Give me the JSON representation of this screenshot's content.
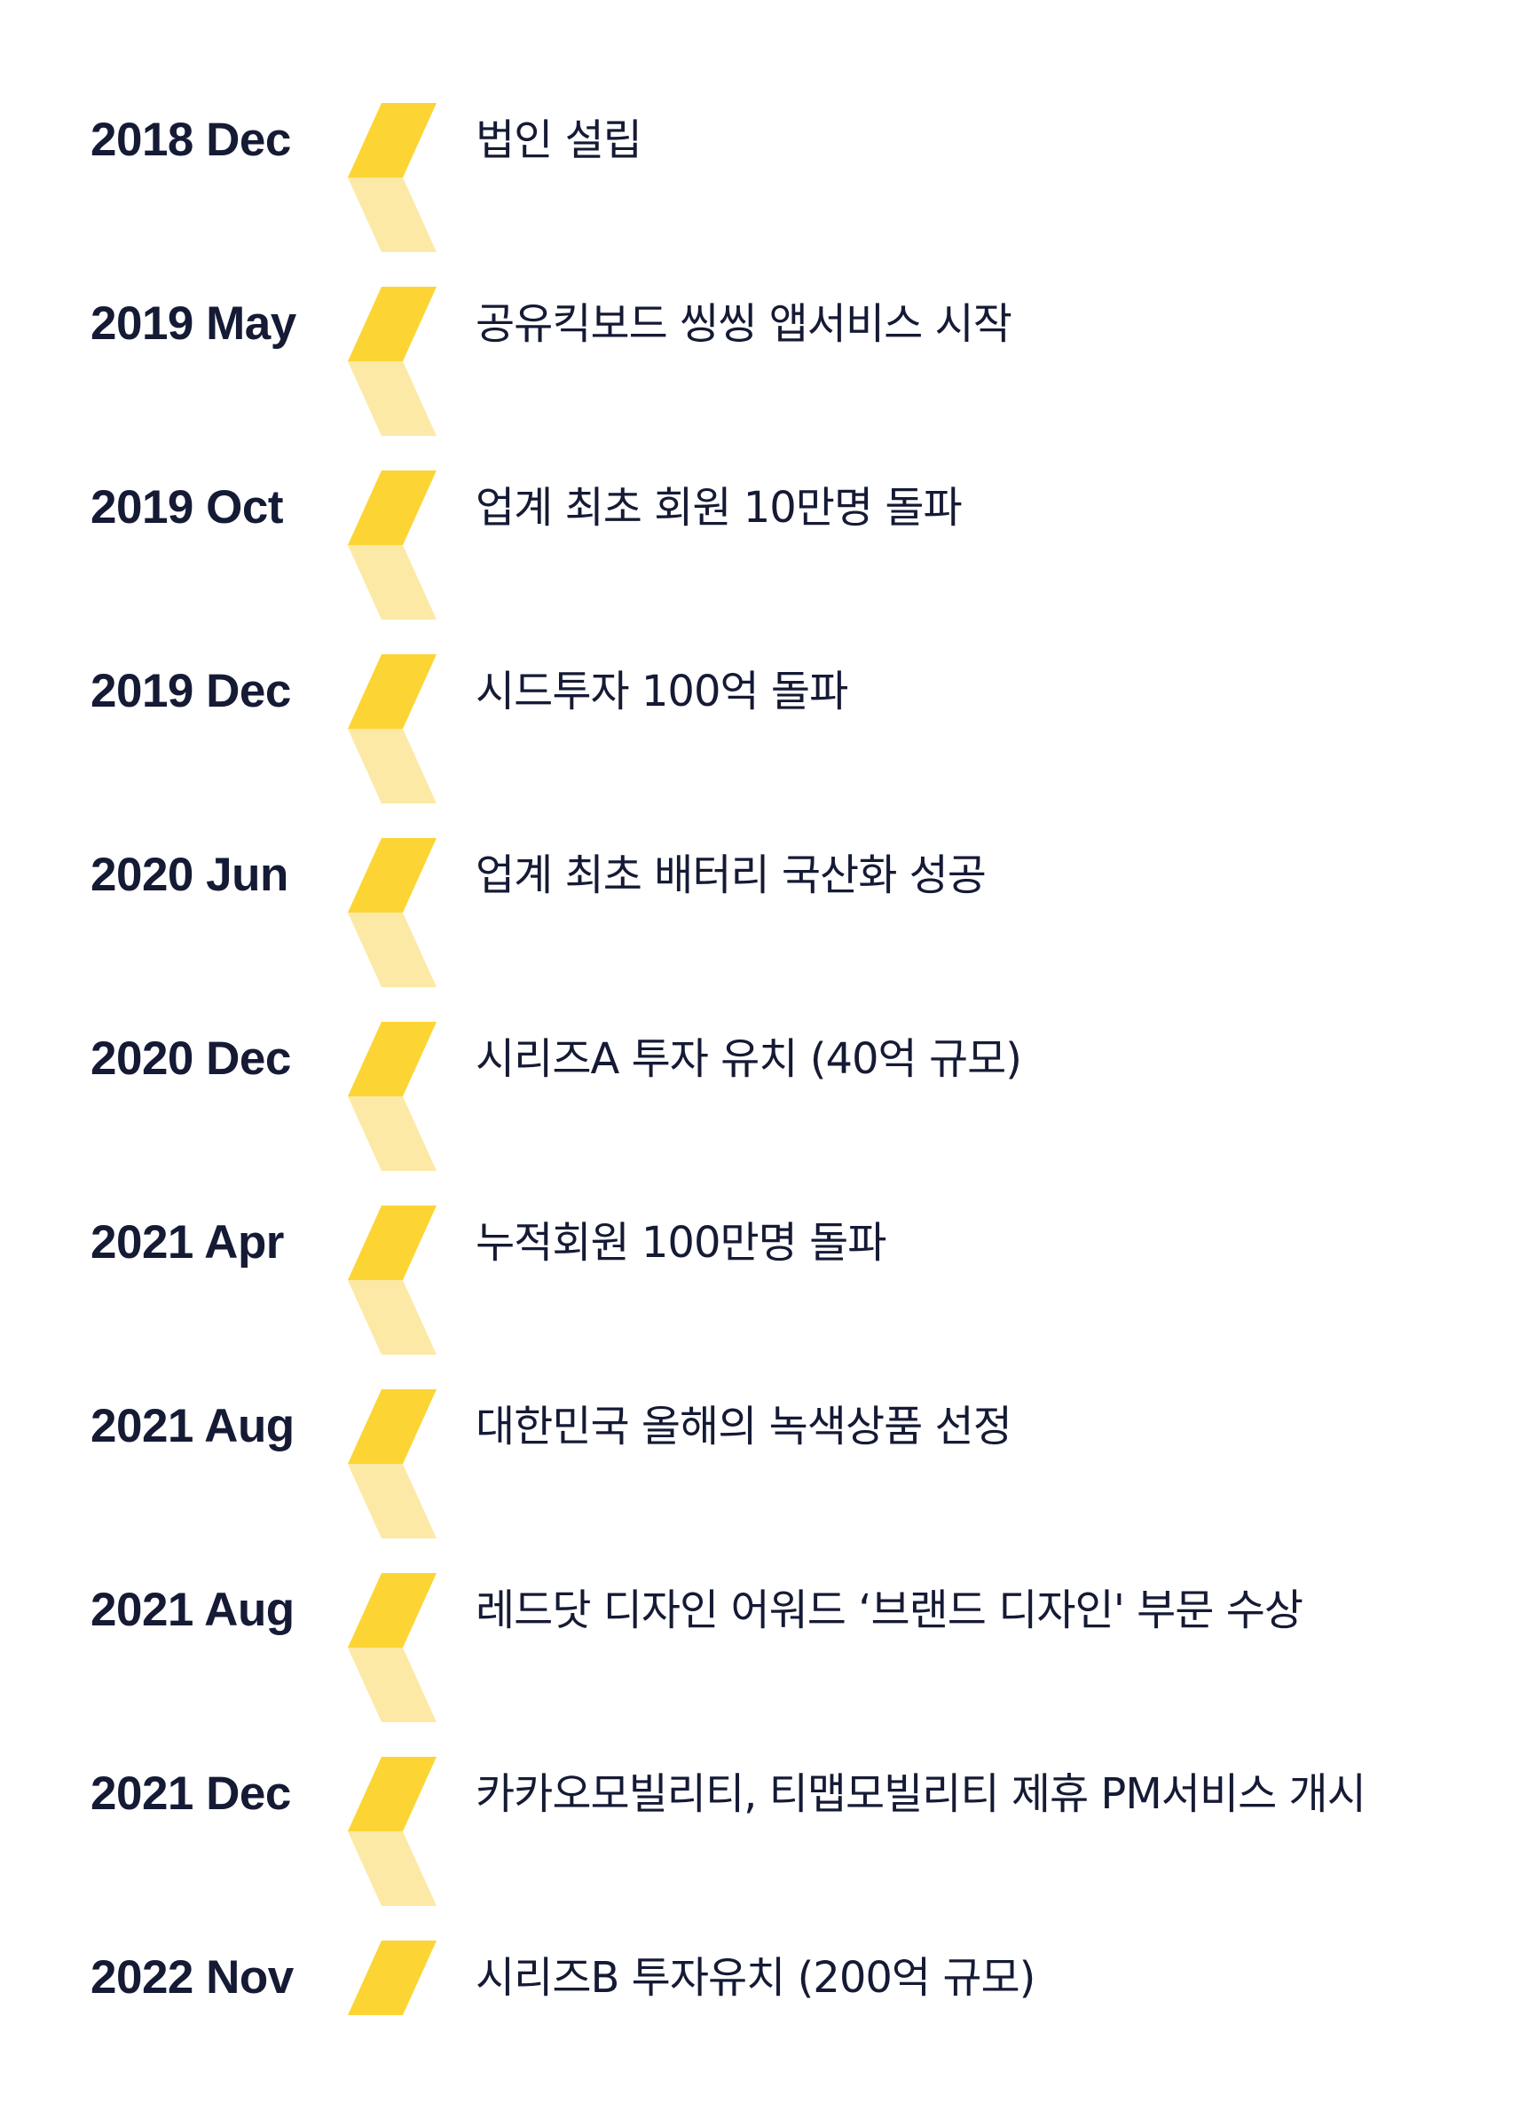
{
  "colors": {
    "accent": "#FCD535",
    "accent_light": "#FDE9A6",
    "text": "#151A35",
    "background": "#FFFFFF"
  },
  "timeline": [
    {
      "date": "2018 Dec",
      "event": "법인 설립"
    },
    {
      "date": "2019 May",
      "event": "공유킥보드 씽씽 앱서비스 시작"
    },
    {
      "date": "2019 Oct",
      "event": "업계 최초 회원 10만명 돌파"
    },
    {
      "date": "2019 Dec",
      "event": "시드투자 100억 돌파"
    },
    {
      "date": "2020 Jun",
      "event": "업계 최초 배터리 국산화 성공"
    },
    {
      "date": "2020 Dec",
      "event": "시리즈A 투자 유치 (40억 규모)"
    },
    {
      "date": "2021 Apr",
      "event": "누적회원 100만명 돌파"
    },
    {
      "date": "2021 Aug",
      "event": "대한민국 올해의 녹색상품 선정"
    },
    {
      "date": "2021 Aug",
      "event": "레드닷 디자인 어워드 ‘브랜드 디자인' 부문 수상"
    },
    {
      "date": "2021 Dec",
      "event": "카카오모빌리티, 티맵모빌리티 제휴 PM서비스 개시"
    },
    {
      "date": "2022 Nov",
      "event": "시리즈B 투자유치 (200억 규모)"
    }
  ]
}
